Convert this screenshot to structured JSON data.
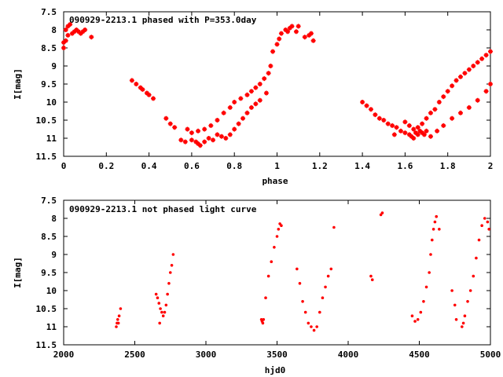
{
  "chart_data": [
    {
      "type": "scatter",
      "title": "090929-2213.1 phased with P=353.0day",
      "xlabel": "phase",
      "ylabel": "I[mag]",
      "xlim": [
        0,
        2
      ],
      "ylim": [
        11.5,
        7.5
      ],
      "y_reversed": true,
      "x_ticks": [
        0,
        0.2,
        0.4,
        0.6,
        0.8,
        1,
        1.2,
        1.4,
        1.6,
        1.8,
        2
      ],
      "x_tick_labels": [
        "0",
        "0.2",
        "0.4",
        "0.6",
        "0.8",
        "1",
        "1.2",
        "1.4",
        "1.6",
        "1.8",
        "2"
      ],
      "y_ticks": [
        7.5,
        8,
        8.5,
        9,
        9.5,
        10,
        10.5,
        11,
        11.5
      ],
      "y_tick_labels": [
        "7.5",
        "8",
        "8.5",
        "9",
        "9.5",
        "10",
        "10.5",
        "11",
        "11.5"
      ],
      "marker_color": "#ff0000",
      "marker": "plus",
      "series": [
        {
          "x": [
            0.0,
            0.01,
            0.02,
            0.03,
            0.04,
            0.05,
            0.06,
            0.07,
            0.08,
            0.09,
            0.1,
            0.13,
            0.0,
            0.01,
            0.02,
            0.32,
            0.34,
            0.36,
            0.37,
            0.39,
            0.4,
            0.42,
            0.48,
            0.5,
            0.52,
            0.55,
            0.57,
            0.6,
            0.62,
            0.63,
            0.64,
            0.66,
            0.68,
            0.7,
            0.58,
            0.6,
            0.63,
            0.66,
            0.69,
            0.72,
            0.75,
            0.78,
            0.8,
            0.83,
            0.86,
            0.88,
            0.9,
            0.92,
            0.94,
            0.96,
            0.72,
            0.74,
            0.76,
            0.78,
            0.8,
            0.82,
            0.84,
            0.86,
            0.88,
            0.9,
            0.92,
            0.95,
            0.97,
            0.98,
            1.0,
            1.01,
            1.02,
            1.04,
            1.05,
            1.06,
            1.07,
            1.09,
            1.1,
            1.13,
            1.15,
            1.16,
            1.17,
            1.4,
            1.42,
            1.44,
            1.46,
            1.48,
            1.5,
            1.52,
            1.54,
            1.56,
            1.58,
            1.6,
            1.62,
            1.63,
            1.64,
            1.65,
            1.66,
            1.67,
            1.68,
            1.69,
            1.7,
            1.6,
            1.62,
            1.64,
            1.66,
            1.68,
            1.7,
            1.72,
            1.74,
            1.76,
            1.78,
            1.8,
            1.82,
            1.84,
            1.86,
            1.88,
            1.9,
            1.92,
            1.94,
            1.96,
            1.98,
            2.0,
            1.72,
            1.75,
            1.78,
            1.82,
            1.86,
            1.9,
            1.94,
            1.98,
            2.0,
            1.55
          ],
          "y": [
            8.5,
            8.0,
            7.9,
            7.85,
            8.1,
            8.05,
            8.0,
            8.05,
            8.1,
            8.05,
            8.0,
            8.2,
            8.35,
            8.3,
            8.15,
            9.4,
            9.5,
            9.6,
            9.65,
            9.75,
            9.8,
            9.9,
            10.45,
            10.6,
            10.7,
            11.05,
            11.1,
            11.05,
            11.1,
            11.15,
            11.2,
            11.1,
            11.0,
            11.05,
            10.75,
            10.85,
            10.8,
            10.75,
            10.65,
            10.5,
            10.3,
            10.15,
            10.0,
            9.9,
            9.8,
            9.7,
            9.6,
            9.5,
            9.35,
            9.2,
            10.9,
            10.95,
            11.0,
            10.9,
            10.75,
            10.6,
            10.45,
            10.3,
            10.15,
            10.05,
            9.95,
            9.75,
            9.0,
            8.6,
            8.4,
            8.25,
            8.1,
            8.0,
            8.05,
            7.95,
            7.9,
            8.05,
            7.9,
            8.2,
            8.15,
            8.1,
            8.3,
            10.0,
            10.1,
            10.2,
            10.35,
            10.45,
            10.5,
            10.6,
            10.65,
            10.7,
            10.8,
            10.85,
            10.9,
            10.95,
            11.0,
            10.85,
            10.9,
            10.8,
            10.85,
            10.9,
            10.8,
            10.55,
            10.65,
            10.75,
            10.7,
            10.6,
            10.45,
            10.3,
            10.2,
            10.0,
            9.85,
            9.7,
            9.55,
            9.4,
            9.3,
            9.2,
            9.1,
            9.0,
            8.9,
            8.8,
            8.7,
            8.6,
            10.95,
            10.8,
            10.65,
            10.45,
            10.3,
            10.15,
            9.95,
            9.7,
            9.5,
            10.9
          ]
        }
      ]
    },
    {
      "type": "scatter",
      "title": "090929-2213.1 not phased light curve",
      "xlabel": "hjd0",
      "ylabel": "I[mag]",
      "xlim": [
        2000,
        5000
      ],
      "ylim": [
        11.5,
        7.5
      ],
      "y_reversed": true,
      "x_ticks": [
        2000,
        2500,
        3000,
        3500,
        4000,
        4500,
        5000
      ],
      "x_tick_labels": [
        "2000",
        "2500",
        "3000",
        "3500",
        "4000",
        "4500",
        "5000"
      ],
      "y_ticks": [
        7.5,
        8,
        8.5,
        9,
        9.5,
        10,
        10.5,
        11,
        11.5
      ],
      "y_tick_labels": [
        "7.5",
        "8",
        "8.5",
        "9",
        "9.5",
        "10",
        "10.5",
        "11",
        "11.5"
      ],
      "marker_color": "#ff0000",
      "marker": "dot",
      "series": [
        {
          "x": [
            2370,
            2375,
            2380,
            2385,
            2390,
            2400,
            2650,
            2660,
            2670,
            2680,
            2690,
            2700,
            2710,
            2720,
            2730,
            2740,
            2750,
            2760,
            2770,
            2675,
            3390,
            3395,
            3400,
            3405,
            3420,
            3440,
            3460,
            3480,
            3500,
            3510,
            3520,
            3530,
            3640,
            3660,
            3680,
            3700,
            3720,
            3740,
            3760,
            3780,
            3800,
            3820,
            3840,
            3860,
            3880,
            3900,
            4160,
            4170,
            4230,
            4240,
            4450,
            4470,
            4490,
            4510,
            4530,
            4550,
            4570,
            4580,
            4590,
            4600,
            4610,
            4620,
            4640,
            4730,
            4750,
            4760,
            4800,
            4810,
            4820,
            4840,
            4860,
            4880,
            4900,
            4920,
            4940,
            4960,
            4980,
            4990
          ],
          "y": [
            11.0,
            10.9,
            10.8,
            10.9,
            10.7,
            10.5,
            10.1,
            10.2,
            10.35,
            10.5,
            10.6,
            10.7,
            10.6,
            10.4,
            10.1,
            9.8,
            9.5,
            9.3,
            9.0,
            10.9,
            10.8,
            10.85,
            10.9,
            10.8,
            10.2,
            9.6,
            9.2,
            8.8,
            8.5,
            8.3,
            8.15,
            8.2,
            9.4,
            9.8,
            10.3,
            10.6,
            10.9,
            11.0,
            11.1,
            11.0,
            10.6,
            10.2,
            9.9,
            9.6,
            9.4,
            8.25,
            9.6,
            9.7,
            7.9,
            7.85,
            10.7,
            10.85,
            10.8,
            10.6,
            10.3,
            9.9,
            9.5,
            9.0,
            8.6,
            8.3,
            8.1,
            7.95,
            8.3,
            10.0,
            10.4,
            10.8,
            11.0,
            10.9,
            10.7,
            10.3,
            10.0,
            9.6,
            9.1,
            8.6,
            8.2,
            8.0,
            8.1,
            8.3
          ]
        }
      ]
    }
  ]
}
